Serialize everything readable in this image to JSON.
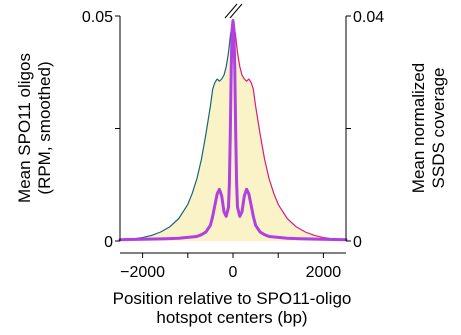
{
  "chart_data": {
    "type": "line",
    "title": "",
    "xlabel_lines": [
      "Position relative to SPO11-oligo",
      "hotspot centers (bp)"
    ],
    "ylabel_left_lines": [
      "Mean SPO11 oligos",
      "(RPM, smoothed)"
    ],
    "ylabel_right_lines": [
      "Mean normalized",
      "SSDS coverage"
    ],
    "xlim": [
      -2500,
      2500
    ],
    "ylim_left": [
      0,
      0.05
    ],
    "ylim_right": [
      0,
      0.04
    ],
    "x_ticks": [
      -2000,
      -1000,
      0,
      1000,
      2000
    ],
    "x_tick_labels": [
      "−2000",
      "0",
      "2000"
    ],
    "x_tick_label_values": [
      -2000,
      0,
      2000
    ],
    "y_left_ticks": [
      0,
      0.025,
      0.05
    ],
    "y_left_tick_labels": [
      "0",
      "0.05"
    ],
    "y_left_tick_label_values": [
      0,
      0.05
    ],
    "y_right_ticks": [
      0,
      0.02,
      0.04
    ],
    "y_right_tick_labels": [
      "0",
      "0.04"
    ],
    "y_right_tick_label_values": [
      0,
      0.04
    ],
    "axis_break_marker": "top-center",
    "fill_color": "#fbf3c8",
    "series": [
      {
        "axis": "right",
        "color": "#17657f",
        "x": [
          -2500,
          -2200,
          -2000,
          -1800,
          -1600,
          -1400,
          -1200,
          -1000,
          -900,
          -800,
          -700,
          -600,
          -500,
          -450,
          -400,
          -350,
          -300,
          -250,
          -200,
          -150,
          -100,
          -50,
          -25,
          0
        ],
        "y": [
          0.0002,
          0.0004,
          0.0006,
          0.001,
          0.0016,
          0.0025,
          0.004,
          0.0065,
          0.0085,
          0.011,
          0.0145,
          0.019,
          0.024,
          0.027,
          0.0282,
          0.0288,
          0.0284,
          0.0288,
          0.0295,
          0.031,
          0.0335,
          0.037,
          0.038,
          0.0385
        ]
      },
      {
        "axis": "right",
        "color": "#d81b7c",
        "x": [
          0,
          25,
          50,
          100,
          150,
          200,
          250,
          300,
          350,
          400,
          450,
          500,
          600,
          700,
          800,
          900,
          1000,
          1200,
          1400,
          1600,
          1800,
          2000,
          2200,
          2500
        ],
        "y": [
          0.0385,
          0.038,
          0.037,
          0.0335,
          0.031,
          0.0295,
          0.0288,
          0.0284,
          0.0288,
          0.0282,
          0.027,
          0.024,
          0.019,
          0.0145,
          0.011,
          0.0085,
          0.0065,
          0.004,
          0.0025,
          0.0016,
          0.001,
          0.0006,
          0.0004,
          0.0002
        ]
      },
      {
        "axis": "left",
        "color": "#b040e0",
        "x": [
          -2500,
          -2000,
          -1500,
          -1200,
          -1000,
          -800,
          -700,
          -600,
          -500,
          -450,
          -400,
          -350,
          -300,
          -250,
          -200,
          -150,
          -100,
          -80,
          -60,
          -40,
          -20,
          0,
          20,
          40,
          60,
          80,
          100,
          150,
          200,
          250,
          300,
          350,
          400,
          450,
          500,
          600,
          700,
          800,
          1000,
          1200,
          1500,
          2000,
          2500
        ],
        "y": [
          0.0003,
          0.0004,
          0.0005,
          0.0006,
          0.0008,
          0.001,
          0.0014,
          0.002,
          0.0035,
          0.0055,
          0.008,
          0.0105,
          0.0115,
          0.01,
          0.0065,
          0.0055,
          0.0075,
          0.013,
          0.024,
          0.038,
          0.047,
          0.049,
          0.047,
          0.038,
          0.024,
          0.013,
          0.0075,
          0.0055,
          0.0065,
          0.01,
          0.0115,
          0.0105,
          0.008,
          0.0055,
          0.0035,
          0.002,
          0.0014,
          0.001,
          0.0008,
          0.0006,
          0.0005,
          0.0004,
          0.0003
        ]
      }
    ]
  }
}
